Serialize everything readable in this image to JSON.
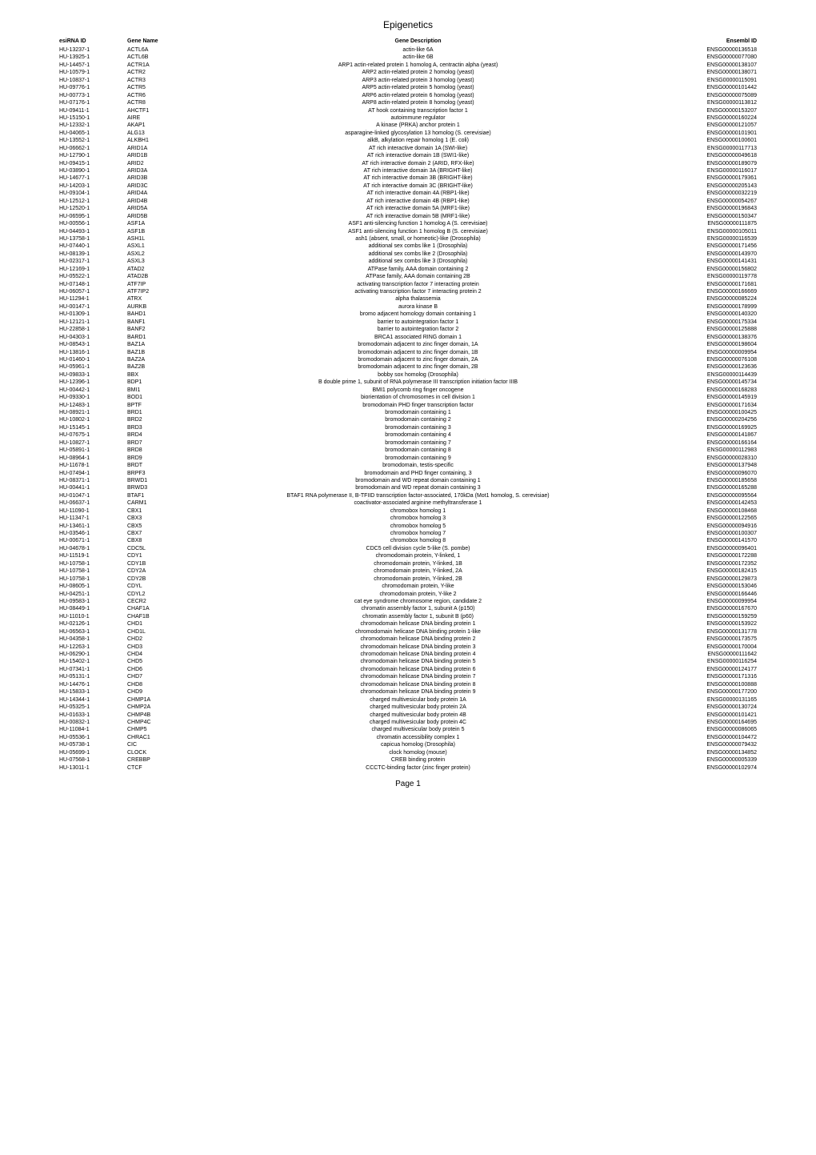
{
  "title": "Epigenetics",
  "footer": "Page 1",
  "headers": {
    "esirna": "esiRNA ID",
    "gene": "Gene Name",
    "desc": "Gene Description",
    "ensembl": "Ensembl ID"
  },
  "rows": [
    [
      "HU-13237-1",
      "ACTL6A",
      "actin-like 6A",
      "ENSG00000136518"
    ],
    [
      "HU-13925-1",
      "ACTL6B",
      "actin-like 6B",
      "ENSG00000077080"
    ],
    [
      "HU-14457-1",
      "ACTR1A",
      "ARP1 actin-related protein 1 homolog A, centractin alpha (yeast)",
      "ENSG00000138107"
    ],
    [
      "HU-10579-1",
      "ACTR2",
      "ARP2 actin-related protein 2 homolog (yeast)",
      "ENSG00000138071"
    ],
    [
      "HU-10837-1",
      "ACTR3",
      "ARP3 actin-related protein 3 homolog (yeast)",
      "ENSG00000115091"
    ],
    [
      "HU-09776-1",
      "ACTR5",
      "ARP5 actin-related protein 5 homolog (yeast)",
      "ENSG00000101442"
    ],
    [
      "HU-00773-1",
      "ACTR6",
      "ARP6 actin-related protein 6 homolog (yeast)",
      "ENSG00000075089"
    ],
    [
      "HU-07176-1",
      "ACTR8",
      "ARP8 actin-related protein 8 homolog (yeast)",
      "ENSG00000113812"
    ],
    [
      "HU-09411-1",
      "AHCTF1",
      "AT hook containing transcription factor 1",
      "ENSG00000153207"
    ],
    [
      "HU-15150-1",
      "AIRE",
      "autoimmune regulator",
      "ENSG00000160224"
    ],
    [
      "HU-12332-1",
      "AKAP1",
      "A kinase (PRKA) anchor protein 1",
      "ENSG00000121057"
    ],
    [
      "HU-04065-1",
      "ALG13",
      "asparagine-linked glycosylation 13 homolog (S. cerevisiae)",
      "ENSG00000101901"
    ],
    [
      "HU-13552-1",
      "ALKBH1",
      "alkB, alkylation repair homolog 1 (E. coli)",
      "ENSG00000100601"
    ],
    [
      "HU-06662-1",
      "ARID1A",
      "AT rich interactive domain 1A (SWI-like)",
      "ENSG00000117713"
    ],
    [
      "HU-12790-1",
      "ARID1B",
      "AT rich interactive domain 1B (SWI1-like)",
      "ENSG00000049618"
    ],
    [
      "HU-09415-1",
      "ARID2",
      "AT rich interactive domain 2 (ARID, RFX-like)",
      "ENSG00000189079"
    ],
    [
      "HU-03890-1",
      "ARID3A",
      "AT rich interactive domain 3A (BRIGHT-like)",
      "ENSG00000116017"
    ],
    [
      "HU-14677-1",
      "ARID3B",
      "AT rich interactive domain 3B (BRIGHT-like)",
      "ENSG00000179361"
    ],
    [
      "HU-14203-1",
      "ARID3C",
      "AT rich interactive domain 3C (BRIGHT-like)",
      "ENSG00000205143"
    ],
    [
      "HU-09104-1",
      "ARID4A",
      "AT rich interactive domain 4A (RBP1-like)",
      "ENSG00000032219"
    ],
    [
      "HU-12512-1",
      "ARID4B",
      "AT rich interactive domain 4B (RBP1-like)",
      "ENSG00000054267"
    ],
    [
      "HU-12520-1",
      "ARID5A",
      "AT rich interactive domain 5A (MRF1-like)",
      "ENSG00000196843"
    ],
    [
      "HU-06595-1",
      "ARID5B",
      "AT rich interactive domain 5B (MRF1-like)",
      "ENSG00000150347"
    ],
    [
      "HU-00556-1",
      "ASF1A",
      "ASF1 anti-silencing function 1 homolog A (S. cerevisiae)",
      "ENSG00000111875"
    ],
    [
      "HU-04493-1",
      "ASF1B",
      "ASF1 anti-silencing function 1 homolog B (S. cerevisiae)",
      "ENSG00000105011"
    ],
    [
      "HU-13758-1",
      "ASH1L",
      "ash1 (absent, small, or homeotic)-like (Drosophila)",
      "ENSG00000116539"
    ],
    [
      "HU-07440-1",
      "ASXL1",
      "additional sex combs like 1 (Drosophila)",
      "ENSG00000171456"
    ],
    [
      "HU-08139-1",
      "ASXL2",
      "additional sex combs like 2 (Drosophila)",
      "ENSG00000143970"
    ],
    [
      "HU-02317-1",
      "ASXL3",
      "additional sex combs like 3 (Drosophila)",
      "ENSG00000141431"
    ],
    [
      "HU-12169-1",
      "ATAD2",
      "ATPase family, AAA domain containing 2",
      "ENSG00000156802"
    ],
    [
      "HU-05522-1",
      "ATAD2B",
      "ATPase family, AAA domain containing 2B",
      "ENSG00000119778"
    ],
    [
      "HU-07148-1",
      "ATF7IP",
      "activating transcription factor 7 interacting protein",
      "ENSG00000171681"
    ],
    [
      "HU-06057-1",
      "ATF7IP2",
      "activating transcription factor 7 interacting protein 2",
      "ENSG00000166669"
    ],
    [
      "HU-11294-1",
      "ATRX",
      "alpha thalassemia",
      "ENSG00000085224"
    ],
    [
      "HU-00147-1",
      "AURKB",
      "aurora kinase B",
      "ENSG00000178999"
    ],
    [
      "HU-01309-1",
      "BAHD1",
      "bromo adjacent homology domain containing 1",
      "ENSG00000140320"
    ],
    [
      "HU-12121-1",
      "BANF1",
      "barrier to autointegration factor 1",
      "ENSG00000175334"
    ],
    [
      "HU-22858-1",
      "BANF2",
      "barrier to autointegration factor 2",
      "ENSG00000125888"
    ],
    [
      "HU-04303-1",
      "BARD1",
      "BRCA1 associated RING domain 1",
      "ENSG00000138376"
    ],
    [
      "HU-08543-1",
      "BAZ1A",
      "bromodomain adjacent to zinc finger domain, 1A",
      "ENSG00000198604"
    ],
    [
      "HU-13816-1",
      "BAZ1B",
      "bromodomain adjacent to zinc finger domain, 1B",
      "ENSG00000009954"
    ],
    [
      "HU-01460-1",
      "BAZ2A",
      "bromodomain adjacent to zinc finger domain, 2A",
      "ENSG00000076108"
    ],
    [
      "HU-05961-1",
      "BAZ2B",
      "bromodomain adjacent to zinc finger domain, 2B",
      "ENSG00000123636"
    ],
    [
      "HU-09833-1",
      "BBX",
      "bobby sox homolog (Drosophila)",
      "ENSG00000114439"
    ],
    [
      "HU-12396-1",
      "BDP1",
      "B double prime 1, subunit of RNA polymerase III transcription initiation factor IIIB",
      "ENSG00000145734"
    ],
    [
      "HU-00442-1",
      "BMI1",
      "BMI1 polycomb ring finger oncogene",
      "ENSG00000168283"
    ],
    [
      "HU-09330-1",
      "BOD1",
      "biorientation of chromosomes in cell division 1",
      "ENSG00000145919"
    ],
    [
      "HU-12483-1",
      "BPTF",
      "bromodomain PHD finger transcription factor",
      "ENSG00000171634"
    ],
    [
      "HU-08921-1",
      "BRD1",
      "bromodomain containing 1",
      "ENSG00000100425"
    ],
    [
      "HU-10802-1",
      "BRD2",
      "bromodomain containing 2",
      "ENSG00000204256"
    ],
    [
      "HU-15145-1",
      "BRD3",
      "bromodomain containing 3",
      "ENSG00000169925"
    ],
    [
      "HU-07675-1",
      "BRD4",
      "bromodomain containing 4",
      "ENSG00000141867"
    ],
    [
      "HU-10827-1",
      "BRD7",
      "bromodomain containing 7",
      "ENSG00000166164"
    ],
    [
      "HU-05891-1",
      "BRD8",
      "bromodomain containing 8",
      "ENSG00000112983"
    ],
    [
      "HU-08964-1",
      "BRD9",
      "bromodomain containing 9",
      "ENSG00000028310"
    ],
    [
      "HU-11678-1",
      "BRDT",
      "bromodomain, testis-specific",
      "ENSG00000137948"
    ],
    [
      "HU-07494-1",
      "BRPF3",
      "bromodomain and PHD finger containing, 3",
      "ENSG00000096070"
    ],
    [
      "HU-08371-1",
      "BRWD1",
      "bromodomain and WD repeat domain containing 1",
      "ENSG00000185658"
    ],
    [
      "HU-00441-1",
      "BRWD3",
      "bromodomain and WD repeat domain containing 3",
      "ENSG00000165288"
    ],
    [
      "HU-01047-1",
      "BTAF1",
      "BTAF1 RNA polymerase II, B-TFIID transcription factor-associated, 170kDa (Mot1 homolog, S. cerevisiae)",
      "ENSG00000095564"
    ],
    [
      "HU-06637-1",
      "CARM1",
      "coactivator-associated arginine methyltransferase 1",
      "ENSG00000142453"
    ],
    [
      "HU-11090-1",
      "CBX1",
      "chromobox homolog 1",
      "ENSG00000108468"
    ],
    [
      "HU-11347-1",
      "CBX3",
      "chromobox homolog 3",
      "ENSG00000122565"
    ],
    [
      "HU-13461-1",
      "CBX5",
      "chromobox homolog 5",
      "ENSG00000094916"
    ],
    [
      "HU-03546-1",
      "CBX7",
      "chromobox homolog 7",
      "ENSG00000100307"
    ],
    [
      "HU-00671-1",
      "CBX8",
      "chromobox homolog 8",
      "ENSG00000141570"
    ],
    [
      "HU-04678-1",
      "CDC5L",
      "CDC5 cell division cycle 5-like (S. pombe)",
      "ENSG00000096401"
    ],
    [
      "HU-11519-1",
      "CDY1",
      "chromodomain protein, Y-linked, 1",
      "ENSG00000172288"
    ],
    [
      "HU-10758-1",
      "CDY1B",
      "chromodomain protein, Y-linked, 1B",
      "ENSG00000172352"
    ],
    [
      "HU-10758-1",
      "CDY2A",
      "chromodomain protein, Y-linked, 2A",
      "ENSG00000182415"
    ],
    [
      "HU-10758-1",
      "CDY2B",
      "chromodomain protein, Y-linked, 2B",
      "ENSG00000129873"
    ],
    [
      "HU-08605-1",
      "CDYL",
      "chromodomain protein, Y-like",
      "ENSG00000153046"
    ],
    [
      "HU-04251-1",
      "CDYL2",
      "chromodomain protein, Y-like 2",
      "ENSG00000166446"
    ],
    [
      "HU-09583-1",
      "CECR2",
      "cat eye syndrome chromosome region, candidate 2",
      "ENSG00000099954"
    ],
    [
      "HU-08449-1",
      "CHAF1A",
      "chromatin assembly factor 1, subunit A (p150)",
      "ENSG00000167670"
    ],
    [
      "HU-11010-1",
      "CHAF1B",
      "chromatin assembly factor 1, subunit B (p60)",
      "ENSG00000159259"
    ],
    [
      "HU-02126-1",
      "CHD1",
      "chromodomain helicase DNA binding protein 1",
      "ENSG00000153922"
    ],
    [
      "HU-06563-1",
      "CHD1L",
      "chromodomain helicase DNA binding protein 1-like",
      "ENSG00000131778"
    ],
    [
      "HU-04358-1",
      "CHD2",
      "chromodomain helicase DNA binding protein 2",
      "ENSG00000173575"
    ],
    [
      "HU-12263-1",
      "CHD3",
      "chromodomain helicase DNA binding protein 3",
      "ENSG00000170004"
    ],
    [
      "HU-06290-1",
      "CHD4",
      "chromodomain helicase DNA binding protein 4",
      "ENSG00000111642"
    ],
    [
      "HU-15402-1",
      "CHD5",
      "chromodomain helicase DNA binding protein 5",
      "ENSG00000116254"
    ],
    [
      "HU-07341-1",
      "CHD6",
      "chromodomain helicase DNA binding protein 6",
      "ENSG00000124177"
    ],
    [
      "HU-05131-1",
      "CHD7",
      "chromodomain helicase DNA binding protein 7",
      "ENSG00000171316"
    ],
    [
      "HU-14476-1",
      "CHD8",
      "chromodomain helicase DNA binding protein 8",
      "ENSG00000100888"
    ],
    [
      "HU-15833-1",
      "CHD9",
      "chromodomain helicase DNA binding protein 9",
      "ENSG00000177200"
    ],
    [
      "HU-14344-1",
      "CHMP1A",
      "charged multivesicular body protein 1A",
      "ENSG00000131165"
    ],
    [
      "HU-05325-1",
      "CHMP2A",
      "charged multivesicular body protein 2A",
      "ENSG00000130724"
    ],
    [
      "HU-01633-1",
      "CHMP4B",
      "charged multivesicular body protein 4B",
      "ENSG00000101421"
    ],
    [
      "HU-00832-1",
      "CHMP4C",
      "charged multivesicular body protein 4C",
      "ENSG00000164695"
    ],
    [
      "HU-11084-1",
      "CHMP5",
      "charged multivesicular body protein 5",
      "ENSG00000086065"
    ],
    [
      "HU-05536-1",
      "CHRAC1",
      "chromatin accessibility complex 1",
      "ENSG00000104472"
    ],
    [
      "HU-05738-1",
      "CIC",
      "capicua homolog (Drosophila)",
      "ENSG00000079432"
    ],
    [
      "HU-05699-1",
      "CLOCK",
      "clock homolog (mouse)",
      "ENSG00000134852"
    ],
    [
      "HU-07568-1",
      "CREBBP",
      "CREB binding protein",
      "ENSG00000005339"
    ],
    [
      "HU-13011-1",
      "CTCF",
      "CCCTC-binding factor (zinc finger protein)",
      "ENSG00000102974"
    ]
  ]
}
